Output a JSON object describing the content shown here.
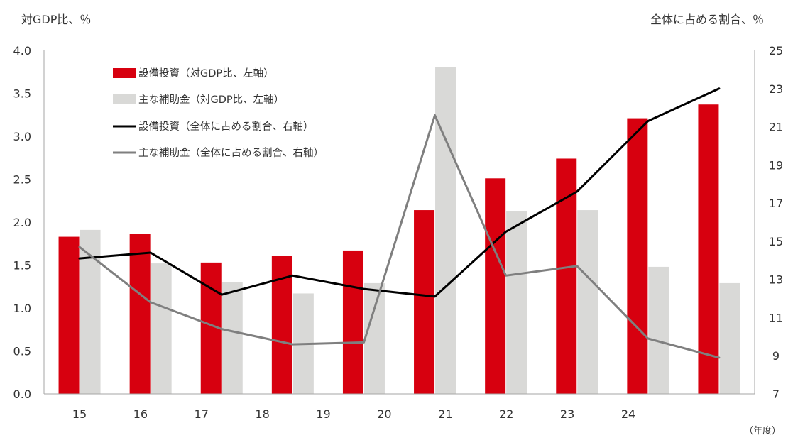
{
  "chart_data": {
    "type": "bar",
    "left_axis_label": "対GDP比、％",
    "right_axis_label": "全体に占める割合、％",
    "x_unit_label": "（年度）",
    "x_tick_labels": [
      "15",
      "16",
      "17",
      "18",
      "19",
      "20",
      "21",
      "22",
      "23",
      "24"
    ],
    "left_ticks": [
      "0.0",
      "0.5",
      "1.0",
      "1.5",
      "2.0",
      "2.5",
      "3.0",
      "3.5",
      "4.0"
    ],
    "right_ticks": [
      "7",
      "9",
      "11",
      "13",
      "15",
      "17",
      "19",
      "21",
      "23",
      "25"
    ],
    "ylim_left": [
      0,
      4
    ],
    "ylim_right": [
      7,
      25
    ],
    "series": [
      {
        "name": "設備投資（対GDP比、左軸）",
        "kind": "bar",
        "axis": "left",
        "color": "#d7000f",
        "values": [
          1.83,
          1.86,
          1.53,
          1.61,
          1.67,
          2.14,
          2.51,
          2.74,
          3.21,
          3.37
        ]
      },
      {
        "name": "主な補助金（対GDP比、左軸）",
        "kind": "bar",
        "axis": "left",
        "color": "#d9d9d7",
        "values": [
          1.91,
          1.52,
          1.3,
          1.17,
          1.29,
          3.81,
          2.13,
          2.14,
          1.48,
          1.29
        ]
      },
      {
        "name": "設備投資（全体に占める割合、右軸）",
        "kind": "line",
        "axis": "right",
        "color": "#000000",
        "values": [
          14.1,
          14.4,
          12.2,
          13.2,
          12.5,
          12.1,
          15.5,
          17.6,
          21.3,
          23.0
        ]
      },
      {
        "name": "主な補助金（全体に占める割合、右軸）",
        "kind": "line",
        "axis": "right",
        "color": "#7f7f7f",
        "values": [
          14.7,
          11.8,
          10.4,
          9.6,
          9.7,
          21.6,
          13.2,
          13.7,
          9.9,
          8.9
        ]
      }
    ]
  }
}
